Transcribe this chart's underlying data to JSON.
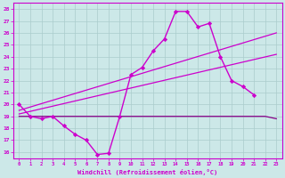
{
  "bg_color": "#cce8e8",
  "grid_color": "#aacccc",
  "line_color": "#cc00cc",
  "dark_line_color": "#880088",
  "xlabel": "Windchill (Refroidissement éolien,°C)",
  "xlim": [
    -0.5,
    23.5
  ],
  "ylim": [
    15.5,
    28.5
  ],
  "yticks": [
    16,
    17,
    18,
    19,
    20,
    21,
    22,
    23,
    24,
    25,
    26,
    27,
    28
  ],
  "xticks": [
    0,
    1,
    2,
    3,
    4,
    5,
    6,
    7,
    8,
    9,
    10,
    11,
    12,
    13,
    14,
    15,
    16,
    17,
    18,
    19,
    20,
    21,
    22,
    23
  ],
  "series": [
    {
      "x": [
        0,
        1,
        2,
        3,
        4,
        5,
        6,
        7,
        8,
        9,
        10,
        11,
        12,
        13,
        14,
        15,
        16,
        17,
        18,
        19,
        20,
        21
      ],
      "y": [
        20,
        19,
        18.8,
        19,
        18.2,
        17.5,
        17.0,
        15.8,
        15.9,
        19.0,
        22.5,
        23.1,
        24.5,
        25.5,
        27.8,
        27.8,
        26.5,
        26.8,
        24.0,
        22.0,
        21.5,
        20.8
      ],
      "color": "#cc00cc",
      "marker": "D",
      "markersize": 2.2,
      "linewidth": 1.0
    },
    {
      "x": [
        0,
        1,
        2,
        3,
        4,
        5,
        6,
        7,
        8,
        9,
        10,
        11,
        12,
        13,
        14,
        15,
        16,
        17,
        18,
        19,
        20,
        21,
        22,
        23
      ],
      "y": [
        19.0,
        19.0,
        19.0,
        19.0,
        19.0,
        19.0,
        19.0,
        19.0,
        19.0,
        19.0,
        19.0,
        19.0,
        19.0,
        19.0,
        19.0,
        19.0,
        19.0,
        19.0,
        19.0,
        19.0,
        19.0,
        19.0,
        19.0,
        18.8
      ],
      "color": "#880088",
      "marker": null,
      "linewidth": 0.9
    },
    {
      "x": [
        0,
        23
      ],
      "y": [
        19.2,
        24.2
      ],
      "color": "#cc00cc",
      "marker": null,
      "linewidth": 0.9
    },
    {
      "x": [
        0,
        23
      ],
      "y": [
        19.5,
        26.0
      ],
      "color": "#cc00cc",
      "marker": null,
      "linewidth": 0.9
    }
  ]
}
